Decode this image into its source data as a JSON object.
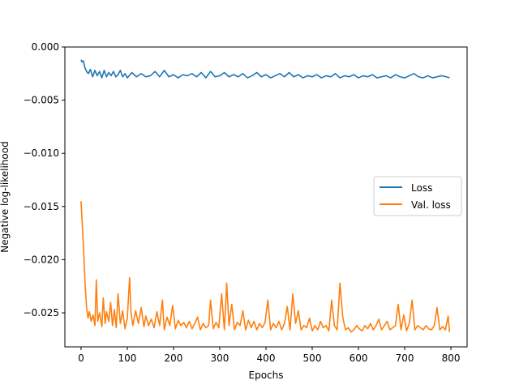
{
  "chart_data": {
    "type": "line",
    "title": "",
    "xlabel": "Epochs",
    "ylabel": "Negative log-likelihood",
    "xlim": [
      -35,
      835
    ],
    "ylim": [
      -0.0282,
      0.0
    ],
    "xticks": [
      0,
      100,
      200,
      300,
      400,
      500,
      600,
      700,
      800
    ],
    "xtick_labels": [
      "0",
      "100",
      "200",
      "300",
      "400",
      "500",
      "600",
      "700",
      "800"
    ],
    "yticks": [
      0.0,
      -0.005,
      -0.01,
      -0.015,
      -0.02,
      -0.025
    ],
    "ytick_labels": [
      "0.000",
      "−0.005",
      "−0.010",
      "−0.015",
      "−0.020",
      "−0.025"
    ],
    "grid": false,
    "legend_position": "center-right",
    "series": [
      {
        "name": "Loss",
        "color": "#1f77b4",
        "x": [
          0,
          2,
          5,
          8,
          12,
          16,
          20,
          25,
          30,
          35,
          40,
          45,
          50,
          55,
          60,
          65,
          70,
          75,
          80,
          85,
          90,
          95,
          100,
          110,
          120,
          130,
          140,
          150,
          160,
          170,
          180,
          190,
          200,
          210,
          220,
          230,
          240,
          250,
          260,
          270,
          280,
          290,
          300,
          310,
          320,
          330,
          340,
          350,
          360,
          370,
          380,
          390,
          400,
          410,
          420,
          430,
          440,
          450,
          460,
          470,
          480,
          490,
          500,
          510,
          520,
          530,
          540,
          550,
          560,
          570,
          580,
          590,
          600,
          610,
          620,
          630,
          640,
          650,
          660,
          670,
          680,
          690,
          700,
          710,
          720,
          730,
          740,
          750,
          760,
          770,
          780,
          790,
          797
        ],
        "values": [
          -0.0012,
          -0.0014,
          -0.0013,
          -0.0019,
          -0.0023,
          -0.0025,
          -0.0021,
          -0.0028,
          -0.0022,
          -0.0027,
          -0.0023,
          -0.0029,
          -0.0022,
          -0.0028,
          -0.0024,
          -0.0027,
          -0.0023,
          -0.0028,
          -0.0026,
          -0.0022,
          -0.0028,
          -0.0025,
          -0.0029,
          -0.0024,
          -0.0028,
          -0.0025,
          -0.0028,
          -0.0027,
          -0.0023,
          -0.0028,
          -0.0022,
          -0.0028,
          -0.0026,
          -0.0029,
          -0.0026,
          -0.0027,
          -0.0025,
          -0.0028,
          -0.0024,
          -0.0029,
          -0.0023,
          -0.0028,
          -0.0027,
          -0.0024,
          -0.0028,
          -0.0026,
          -0.0028,
          -0.0025,
          -0.0029,
          -0.0027,
          -0.0024,
          -0.0028,
          -0.0026,
          -0.0029,
          -0.0027,
          -0.0025,
          -0.0028,
          -0.0024,
          -0.0028,
          -0.0026,
          -0.0029,
          -0.0027,
          -0.0028,
          -0.0026,
          -0.0029,
          -0.0027,
          -0.0028,
          -0.0025,
          -0.0029,
          -0.0027,
          -0.0028,
          -0.0026,
          -0.0029,
          -0.0027,
          -0.0028,
          -0.0026,
          -0.0029,
          -0.0028,
          -0.0027,
          -0.0029,
          -0.0026,
          -0.0028,
          -0.0029,
          -0.0027,
          -0.0025,
          -0.0028,
          -0.0029,
          -0.0027,
          -0.0029,
          -0.0028,
          -0.0027,
          -0.0028,
          -0.0029
        ]
      },
      {
        "name": "Val. loss",
        "color": "#ff7f0e",
        "x": [
          0,
          3,
          6,
          9,
          12,
          15,
          18,
          22,
          26,
          30,
          33,
          36,
          40,
          45,
          48,
          52,
          55,
          60,
          64,
          68,
          72,
          76,
          80,
          85,
          90,
          95,
          100,
          105,
          108,
          112,
          118,
          124,
          130,
          136,
          140,
          146,
          152,
          158,
          164,
          170,
          176,
          180,
          186,
          192,
          198,
          204,
          210,
          216,
          222,
          228,
          234,
          240,
          246,
          252,
          258,
          264,
          270,
          276,
          280,
          286,
          292,
          298,
          304,
          310,
          315,
          320,
          326,
          332,
          338,
          344,
          350,
          356,
          362,
          368,
          374,
          380,
          386,
          392,
          398,
          404,
          410,
          416,
          422,
          428,
          434,
          440,
          446,
          452,
          458,
          464,
          470,
          476,
          482,
          488,
          494,
          500,
          506,
          512,
          518,
          524,
          530,
          536,
          542,
          548,
          554,
          560,
          566,
          572,
          578,
          584,
          590,
          596,
          602,
          608,
          614,
          620,
          626,
          632,
          638,
          644,
          650,
          656,
          662,
          668,
          674,
          680,
          686,
          692,
          698,
          704,
          710,
          716,
          722,
          728,
          734,
          740,
          746,
          752,
          758,
          764,
          770,
          776,
          782,
          788,
          794,
          797
        ],
        "values": [
          -0.0145,
          -0.017,
          -0.0195,
          -0.0225,
          -0.0245,
          -0.0255,
          -0.0249,
          -0.0258,
          -0.0252,
          -0.0262,
          -0.0219,
          -0.0258,
          -0.025,
          -0.0263,
          -0.0236,
          -0.026,
          -0.0249,
          -0.0258,
          -0.024,
          -0.0262,
          -0.0247,
          -0.0264,
          -0.0232,
          -0.026,
          -0.0248,
          -0.0265,
          -0.0255,
          -0.0217,
          -0.025,
          -0.0262,
          -0.0248,
          -0.026,
          -0.0245,
          -0.0263,
          -0.0253,
          -0.0262,
          -0.0256,
          -0.0264,
          -0.0249,
          -0.0262,
          -0.0238,
          -0.0266,
          -0.0254,
          -0.0262,
          -0.0243,
          -0.0265,
          -0.0257,
          -0.0262,
          -0.0259,
          -0.0264,
          -0.0258,
          -0.0265,
          -0.026,
          -0.0254,
          -0.0266,
          -0.026,
          -0.0264,
          -0.0262,
          -0.0238,
          -0.0265,
          -0.0259,
          -0.0264,
          -0.0232,
          -0.0266,
          -0.0222,
          -0.0262,
          -0.0242,
          -0.0266,
          -0.0259,
          -0.0262,
          -0.0248,
          -0.0266,
          -0.0257,
          -0.0264,
          -0.0258,
          -0.0266,
          -0.026,
          -0.0264,
          -0.0259,
          -0.0238,
          -0.0266,
          -0.026,
          -0.0264,
          -0.0258,
          -0.0266,
          -0.026,
          -0.0244,
          -0.0266,
          -0.0232,
          -0.026,
          -0.0248,
          -0.0266,
          -0.0262,
          -0.0264,
          -0.0255,
          -0.0267,
          -0.0262,
          -0.0266,
          -0.0258,
          -0.0264,
          -0.0262,
          -0.0267,
          -0.0238,
          -0.0262,
          -0.0266,
          -0.0222,
          -0.0254,
          -0.0266,
          -0.0264,
          -0.0268,
          -0.0266,
          -0.0262,
          -0.0265,
          -0.0267,
          -0.0262,
          -0.0265,
          -0.026,
          -0.0266,
          -0.0262,
          -0.0256,
          -0.0266,
          -0.0262,
          -0.0258,
          -0.0266,
          -0.0264,
          -0.0262,
          -0.0242,
          -0.0266,
          -0.0252,
          -0.0267,
          -0.026,
          -0.0238,
          -0.0266,
          -0.0262,
          -0.0264,
          -0.0266,
          -0.0262,
          -0.0265,
          -0.0266,
          -0.0262,
          -0.0245,
          -0.0266,
          -0.0263,
          -0.0266,
          -0.0253,
          -0.0268
        ]
      }
    ]
  }
}
